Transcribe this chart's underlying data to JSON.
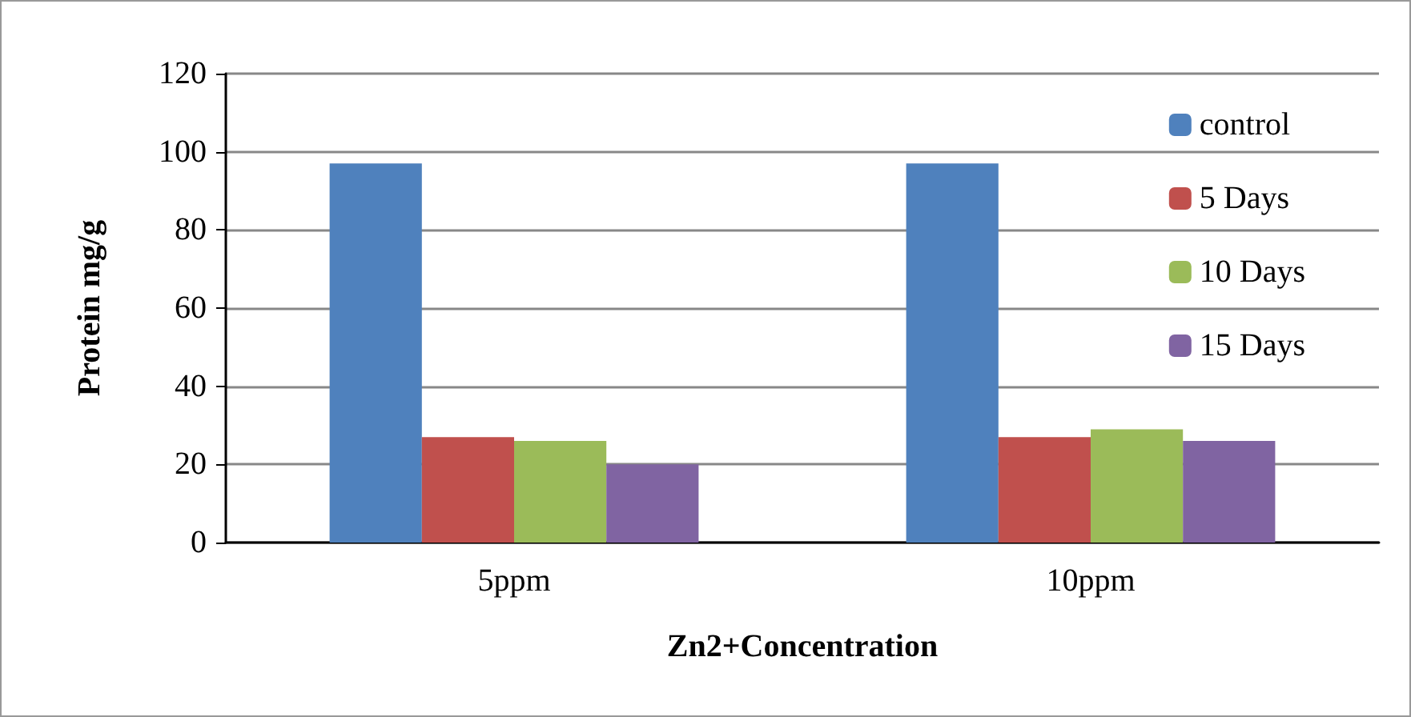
{
  "chart_data": {
    "type": "bar",
    "xlabel": "Zn2+Concentration",
    "ylabel": "Protein mg/g",
    "categories": [
      "5ppm",
      "10ppm"
    ],
    "series": [
      {
        "name": "control",
        "color": "#4f81bd",
        "values": [
          97,
          97
        ]
      },
      {
        "name": "5 Days",
        "color": "#c0504d",
        "values": [
          27,
          27
        ]
      },
      {
        "name": "10 Days",
        "color": "#9bbb59",
        "values": [
          26,
          29
        ]
      },
      {
        "name": "15 Days",
        "color": "#8064a2",
        "values": [
          20,
          26
        ]
      }
    ],
    "ylim": [
      0,
      120
    ],
    "yticks": [
      0,
      20,
      40,
      60,
      80,
      100,
      120
    ],
    "grid": "y",
    "legend": "top right"
  }
}
